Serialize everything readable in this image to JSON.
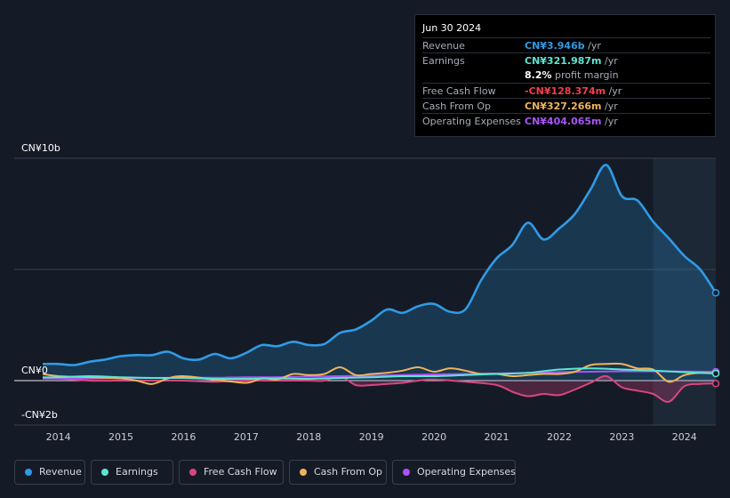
{
  "tooltip": {
    "date": "Jun 30 2024",
    "rows": [
      {
        "label": "Revenue",
        "value": "CN¥3.946b",
        "unit": "/yr",
        "color": "#2f9be6"
      },
      {
        "label": "Earnings",
        "value": "CN¥321.987m",
        "unit": "/yr",
        "color": "#5ce6d1"
      },
      {
        "label": "",
        "value": "8.2%",
        "unit": "profit margin",
        "color": "#ffffff"
      },
      {
        "label": "Free Cash Flow",
        "value": "-CN¥128.374m",
        "unit": "/yr",
        "color": "#f2414b"
      },
      {
        "label": "Cash From Op",
        "value": "CN¥327.266m",
        "unit": "/yr",
        "color": "#f0b35a"
      },
      {
        "label": "Operating Expenses",
        "value": "CN¥404.065m",
        "unit": "/yr",
        "color": "#a855f7"
      }
    ]
  },
  "legend": [
    {
      "label": "Revenue",
      "color": "#2f9be6"
    },
    {
      "label": "Earnings",
      "color": "#5ce6d1"
    },
    {
      "label": "Free Cash Flow",
      "color": "#d9467f"
    },
    {
      "label": "Cash From Op",
      "color": "#f0b35a"
    },
    {
      "label": "Operating Expenses",
      "color": "#a855f7"
    }
  ],
  "chart_data": {
    "type": "area",
    "unit": "CN¥ billions",
    "ylim": [
      -2,
      10
    ],
    "y_tick_labels": [
      "CN¥10b",
      "CN¥0",
      "-CN¥2b"
    ],
    "y_ticks": [
      10,
      0,
      -2
    ],
    "x_tick_labels": [
      "2014",
      "2015",
      "2016",
      "2017",
      "2018",
      "2019",
      "2020",
      "2021",
      "2022",
      "2023",
      "2024"
    ],
    "x_ticks": [
      2014,
      2015,
      2016,
      2017,
      2018,
      2019,
      2020,
      2021,
      2022,
      2023,
      2024
    ],
    "xlim": [
      2013.75,
      2024.5
    ],
    "forecast_shade_start": 2023.5,
    "series": [
      {
        "name": "Revenue",
        "color": "#2f9be6",
        "fill": true,
        "x": [
          2013.75,
          2014.0,
          2014.25,
          2014.5,
          2014.75,
          2015.0,
          2015.25,
          2015.5,
          2015.75,
          2016.0,
          2016.25,
          2016.5,
          2016.75,
          2017.0,
          2017.25,
          2017.5,
          2017.75,
          2018.0,
          2018.25,
          2018.5,
          2018.75,
          2019.0,
          2019.25,
          2019.5,
          2019.75,
          2020.0,
          2020.25,
          2020.5,
          2020.75,
          2021.0,
          2021.25,
          2021.5,
          2021.75,
          2022.0,
          2022.25,
          2022.5,
          2022.75,
          2023.0,
          2023.25,
          2023.5,
          2023.75,
          2024.0,
          2024.25,
          2024.5
        ],
        "y": [
          0.75,
          0.75,
          0.7,
          0.85,
          0.95,
          1.1,
          1.15,
          1.15,
          1.3,
          1.0,
          0.95,
          1.2,
          1.0,
          1.25,
          1.6,
          1.55,
          1.75,
          1.6,
          1.65,
          2.15,
          2.3,
          2.7,
          3.2,
          3.05,
          3.35,
          3.45,
          3.1,
          3.2,
          4.5,
          5.5,
          6.1,
          7.1,
          6.35,
          6.85,
          7.5,
          8.6,
          9.7,
          8.3,
          8.1,
          7.15,
          6.4,
          5.6,
          5.0,
          3.95
        ]
      },
      {
        "name": "Earnings",
        "color": "#5ce6d1",
        "fill": false,
        "x": [
          2013.75,
          2014.0,
          2014.5,
          2015.0,
          2015.5,
          2016.0,
          2016.5,
          2017.0,
          2017.5,
          2018.0,
          2018.5,
          2019.0,
          2019.5,
          2020.0,
          2020.5,
          2021.0,
          2021.5,
          2022.0,
          2022.5,
          2023.0,
          2023.5,
          2024.0,
          2024.5
        ],
        "y": [
          0.15,
          0.15,
          0.2,
          0.15,
          0.12,
          0.12,
          0.08,
          0.08,
          0.1,
          0.08,
          0.12,
          0.15,
          0.2,
          0.2,
          0.25,
          0.3,
          0.35,
          0.5,
          0.55,
          0.5,
          0.45,
          0.38,
          0.32
        ]
      },
      {
        "name": "Free Cash Flow",
        "color": "#d9467f",
        "fill": true,
        "x": [
          2013.75,
          2014.0,
          2014.5,
          2015.0,
          2015.5,
          2016.0,
          2016.5,
          2017.0,
          2017.5,
          2018.0,
          2018.25,
          2018.5,
          2018.75,
          2019.0,
          2019.25,
          2019.5,
          2019.75,
          2020.0,
          2020.5,
          2021.0,
          2021.25,
          2021.5,
          2021.75,
          2022.0,
          2022.25,
          2022.5,
          2022.75,
          2023.0,
          2023.25,
          2023.5,
          2023.75,
          2024.0,
          2024.25,
          2024.5
        ],
        "y": [
          0.1,
          0.1,
          0.0,
          0.0,
          0.0,
          0.0,
          -0.05,
          0.0,
          0.0,
          0.0,
          0.0,
          0.2,
          -0.2,
          -0.2,
          -0.15,
          -0.1,
          0.0,
          0.05,
          -0.05,
          -0.2,
          -0.5,
          -0.7,
          -0.6,
          -0.65,
          -0.4,
          -0.1,
          0.2,
          -0.3,
          -0.45,
          -0.6,
          -0.95,
          -0.25,
          -0.15,
          -0.13
        ]
      },
      {
        "name": "Cash From Op",
        "color": "#f0b35a",
        "fill": false,
        "x": [
          2013.75,
          2014.0,
          2014.5,
          2015.0,
          2015.25,
          2015.5,
          2015.75,
          2016.0,
          2016.5,
          2017.0,
          2017.25,
          2017.5,
          2017.75,
          2018.0,
          2018.25,
          2018.5,
          2018.75,
          2019.0,
          2019.25,
          2019.5,
          2019.75,
          2020.0,
          2020.25,
          2020.5,
          2020.75,
          2021.0,
          2021.25,
          2021.5,
          2021.75,
          2022.0,
          2022.25,
          2022.5,
          2022.75,
          2023.0,
          2023.25,
          2023.5,
          2023.75,
          2024.0,
          2024.25,
          2024.5
        ],
        "y": [
          0.3,
          0.2,
          0.15,
          0.1,
          0.0,
          -0.15,
          0.1,
          0.2,
          0.05,
          -0.1,
          0.1,
          0.05,
          0.3,
          0.25,
          0.3,
          0.6,
          0.25,
          0.3,
          0.35,
          0.45,
          0.6,
          0.4,
          0.55,
          0.45,
          0.3,
          0.3,
          0.2,
          0.25,
          0.3,
          0.3,
          0.4,
          0.7,
          0.75,
          0.75,
          0.55,
          0.5,
          -0.05,
          0.25,
          0.35,
          0.33
        ]
      },
      {
        "name": "Operating Expenses",
        "color": "#a855f7",
        "fill": false,
        "x": [
          2013.75,
          2014.0,
          2014.5,
          2015.0,
          2015.5,
          2016.0,
          2016.5,
          2017.0,
          2017.5,
          2018.0,
          2018.5,
          2019.0,
          2019.5,
          2020.0,
          2020.5,
          2021.0,
          2021.5,
          2022.0,
          2022.5,
          2023.0,
          2023.5,
          2024.0,
          2024.5
        ],
        "y": [
          0.1,
          0.1,
          0.1,
          0.12,
          0.12,
          0.13,
          0.13,
          0.15,
          0.15,
          0.18,
          0.2,
          0.22,
          0.25,
          0.28,
          0.3,
          0.32,
          0.35,
          0.38,
          0.4,
          0.42,
          0.42,
          0.41,
          0.4
        ]
      }
    ]
  }
}
